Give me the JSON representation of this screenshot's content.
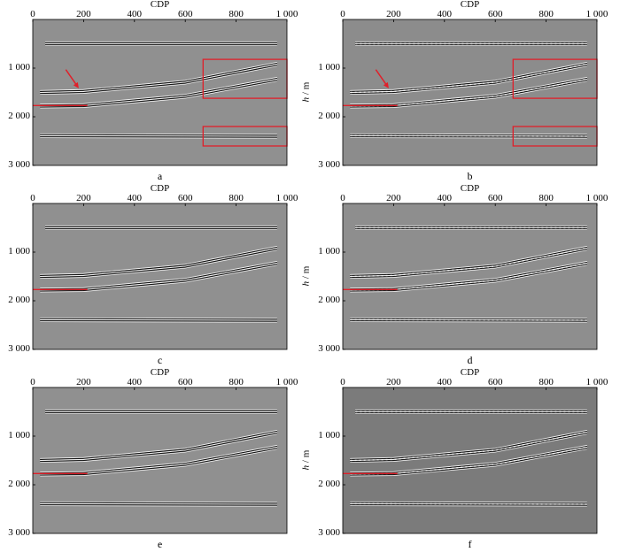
{
  "figure": {
    "panels": [
      {
        "id": "a",
        "label": "a",
        "background": "#909090",
        "boxes": true,
        "arrow": true,
        "striped": false
      },
      {
        "id": "b",
        "label": "b",
        "background": "#8c8c8c",
        "boxes": true,
        "arrow": true,
        "striped": true
      },
      {
        "id": "c",
        "label": "c",
        "background": "#909090",
        "boxes": false,
        "arrow": false,
        "striped": false
      },
      {
        "id": "d",
        "label": "d",
        "background": "#8e8e8e",
        "boxes": false,
        "arrow": false,
        "striped": true
      },
      {
        "id": "e",
        "label": "e",
        "background": "#909090",
        "boxes": false,
        "arrow": false,
        "striped": false
      },
      {
        "id": "f",
        "label": "f",
        "background": "#7b7b7b",
        "boxes": false,
        "arrow": false,
        "striped": true
      }
    ],
    "x_axis": {
      "title": "CDP",
      "ticks": [
        "0",
        "200",
        "400",
        "600",
        "800",
        "1 000"
      ],
      "range": [
        0,
        1000
      ]
    },
    "y_axis": {
      "title_italic": "h",
      "title_unit": " / m",
      "ticks": [
        "1 000",
        "2 000",
        "3 000"
      ],
      "range": [
        0,
        3000
      ]
    },
    "colors": {
      "highlight": "#e0202a",
      "event_dark": "#101010",
      "event_light": "#f2f2f2"
    },
    "reflectors": {
      "flat_top": [
        [
          50,
          500
        ],
        [
          960,
          500
        ]
      ],
      "upper_dipping": [
        [
          30,
          1500
        ],
        [
          200,
          1480
        ],
        [
          600,
          1290
        ],
        [
          960,
          920
        ]
      ],
      "lower_dipping": [
        [
          30,
          1780
        ],
        [
          200,
          1770
        ],
        [
          600,
          1580
        ],
        [
          960,
          1230
        ]
      ],
      "flat_bottom": [
        [
          30,
          2390
        ],
        [
          960,
          2400
        ]
      ],
      "red_segment": [
        [
          0,
          1770
        ],
        [
          215,
          1770
        ]
      ]
    }
  }
}
